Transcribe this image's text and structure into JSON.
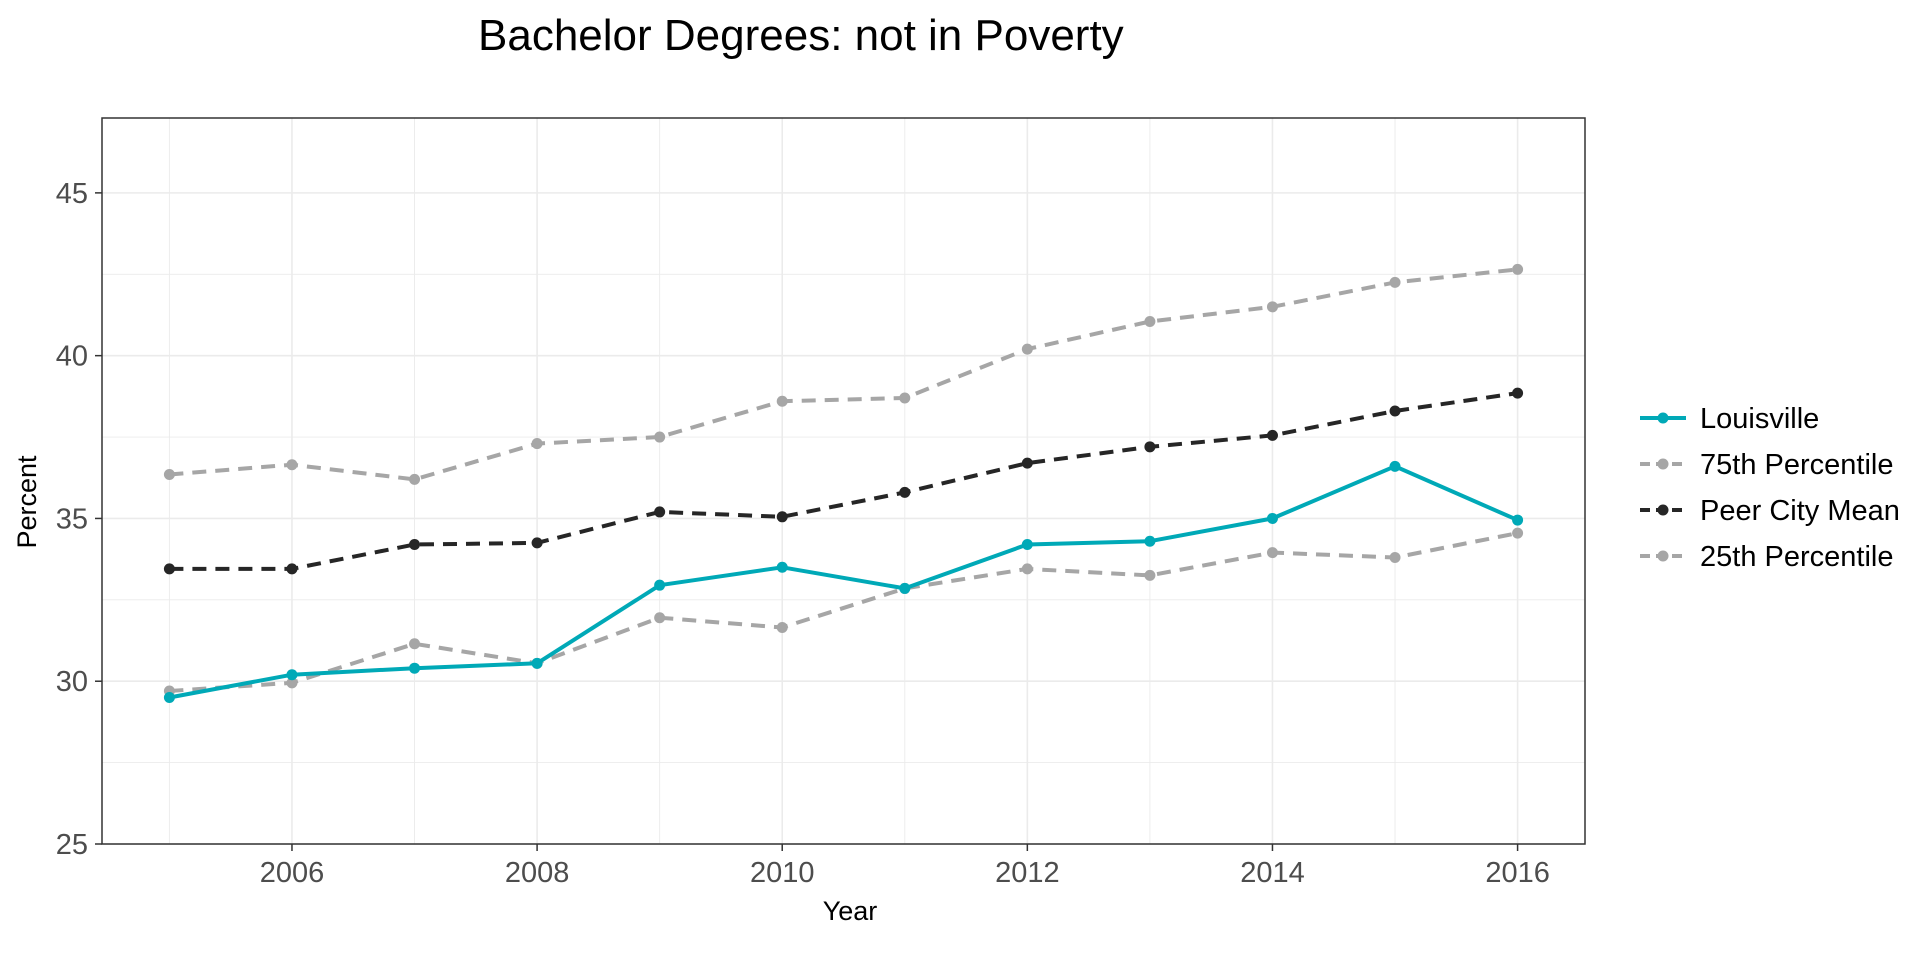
{
  "chart_data": {
    "type": "line",
    "title": "Bachelor Degrees: not in Poverty",
    "xlabel": "Year",
    "ylabel": "Percent",
    "x": [
      2005,
      2006,
      2007,
      2008,
      2009,
      2010,
      2011,
      2012,
      2013,
      2014,
      2015,
      2016
    ],
    "xlim": [
      2004.45,
      2016.55
    ],
    "ylim": [
      25,
      47.3
    ],
    "xticks": [
      2006,
      2008,
      2010,
      2012,
      2014,
      2016
    ],
    "yticks": [
      25,
      30,
      35,
      40,
      45
    ],
    "xtick_labels": [
      "2006",
      "2008",
      "2010",
      "2012",
      "2014",
      "2016"
    ],
    "ytick_labels": [
      "25",
      "30",
      "35",
      "40",
      "45"
    ],
    "grid": true,
    "legend_position": "right",
    "series": [
      {
        "name": "Louisville",
        "color": "#00a9b7",
        "style": "solid",
        "values": [
          29.5,
          30.2,
          30.4,
          30.55,
          32.95,
          33.5,
          32.85,
          34.2,
          34.3,
          35.0,
          36.6,
          34.95
        ]
      },
      {
        "name": "75th Percentile",
        "color": "#a6a6a6",
        "style": "dashed",
        "values": [
          36.35,
          36.65,
          36.2,
          37.3,
          37.5,
          38.6,
          38.7,
          40.2,
          41.05,
          41.5,
          42.25,
          42.65
        ]
      },
      {
        "name": "Peer City Mean",
        "color": "#262626",
        "style": "dashed",
        "values": [
          33.45,
          33.45,
          34.2,
          34.25,
          35.2,
          35.05,
          35.8,
          36.7,
          37.2,
          37.55,
          38.3,
          38.85
        ]
      },
      {
        "name": "25th Percentile",
        "color": "#a6a6a6",
        "style": "dashed",
        "values": [
          29.7,
          29.95,
          31.15,
          30.55,
          31.95,
          31.65,
          32.85,
          33.45,
          33.25,
          33.95,
          33.8,
          34.55
        ]
      }
    ]
  }
}
